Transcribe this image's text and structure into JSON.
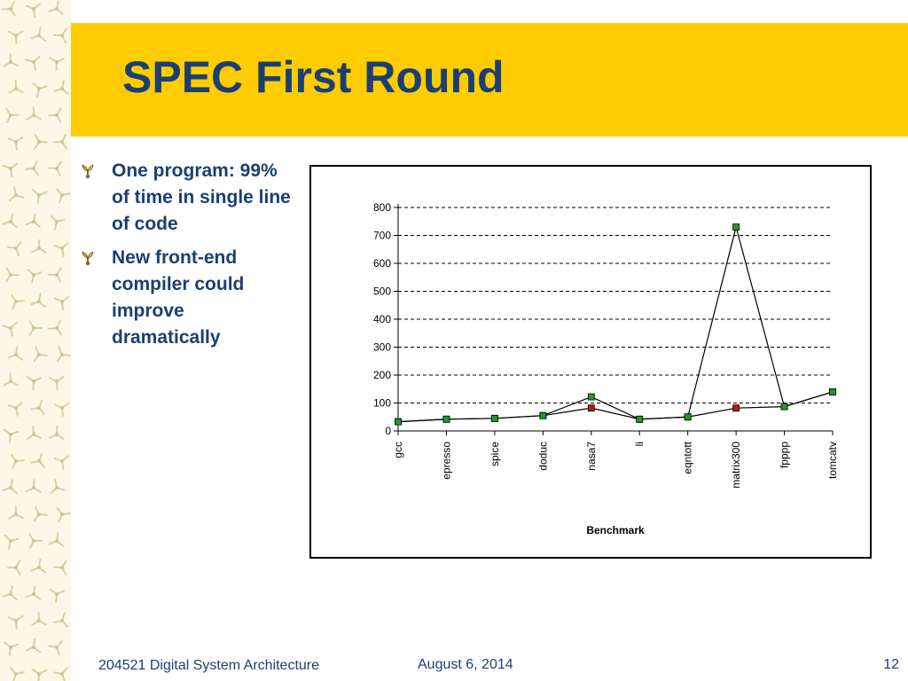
{
  "slide": {
    "title": "SPEC First Round",
    "bullets": [
      "One program: 99% of time in single line of code",
      "New front-end compiler could improve dramatically"
    ]
  },
  "footer": {
    "course": "204521 Digital System Architecture",
    "date": "August 6, 2014",
    "page": "12"
  },
  "colors": {
    "title": "#1b3f73",
    "band": "#ffcc00",
    "marker_green": "#1f9a2a",
    "marker_red": "#c0141d"
  },
  "chart_data": {
    "type": "line",
    "categories": [
      "gcc",
      "epresso",
      "spice",
      "doduc",
      "nasa7",
      "li",
      "eqntott",
      "matrix300",
      "fpppp",
      "tomcatv"
    ],
    "series": [
      {
        "color": "#1f9a2a",
        "values": [
          33,
          42,
          45,
          55,
          122,
          42,
          50,
          730,
          87,
          140
        ]
      },
      {
        "color": "#c0141d",
        "values": [
          33,
          42,
          45,
          55,
          82,
          42,
          50,
          82,
          87,
          140
        ]
      }
    ],
    "xlabel": "Benchmark",
    "ylabel": "",
    "yticks": [
      0,
      100,
      200,
      300,
      400,
      500,
      600,
      700,
      800
    ],
    "ylim": [
      0,
      800
    ],
    "grid": "dashed-horizontal",
    "legend": "none"
  }
}
